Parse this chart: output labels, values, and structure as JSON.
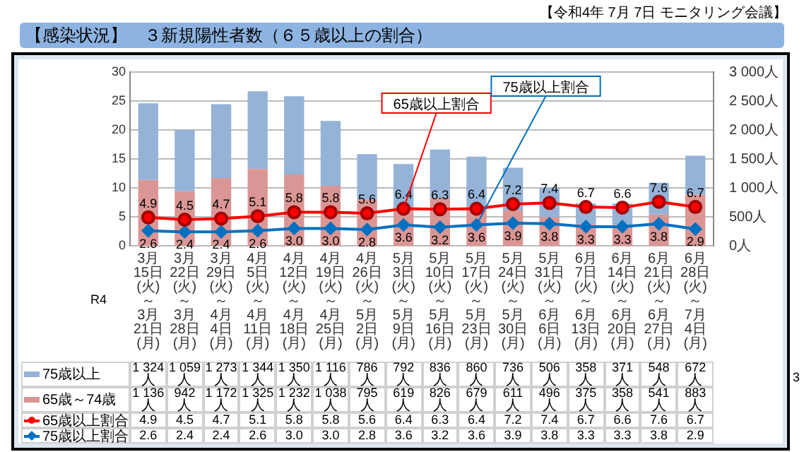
{
  "chart_data": {
    "type": "bar",
    "title": "【感染状況】　３新規陽性者数（６５歳以上の割合）",
    "categories": [
      "3月15日(火)～3月21日(月)",
      "3月22日(火)～3月28日(月)",
      "3月29日(火)～4月4日(月)",
      "4月5日(火)～4月11日(月)",
      "4月12日(火)～4月18日(月)",
      "4月19日(火)～4月25日(月)",
      "4月26日(火)～5月2日(月)",
      "5月3日(火)～5月9日(月)",
      "5月10日(火)～5月16日(月)",
      "5月17日(火)～5月23日(月)",
      "5月24日(火)～5月30日(月)",
      "5月31日(火)～6月6日(月)",
      "6月7日(火)～6月13日(月)",
      "6月14日(火)～6月20日(月)",
      "6月21日(火)～6月27日(月)",
      "6月28日(火)～7月4日(月)"
    ],
    "series": [
      {
        "name": "65歳～74歳",
        "color": "#da9694",
        "axis": "y2",
        "values": [
          1136,
          942,
          1172,
          1325,
          1232,
          1038,
          795,
          619,
          826,
          679,
          611,
          496,
          375,
          358,
          541,
          883
        ],
        "value_labels": [
          "1 136人",
          "942人",
          "1 172人",
          "1 325人",
          "1 232人",
          "1 038人",
          "795人",
          "619人",
          "826人",
          "679人",
          "611人",
          "496人",
          "375人",
          "358人",
          "541人",
          "883人"
        ]
      },
      {
        "name": "75歳以上",
        "color": "#95b3d7",
        "axis": "y2",
        "values": [
          1324,
          1059,
          1273,
          1344,
          1350,
          1116,
          786,
          792,
          836,
          860,
          736,
          506,
          358,
          371,
          548,
          672
        ],
        "value_labels": [
          "1 324人",
          "1 059人",
          "1 273人",
          "1 344人",
          "1 350人",
          "1 116人",
          "786人",
          "792人",
          "836人",
          "860人",
          "736人",
          "506人",
          "358人",
          "371人",
          "548人",
          "672人"
        ]
      },
      {
        "name": "65歳以上割合",
        "type": "line",
        "color": "#ff0000",
        "marker": "circle",
        "axis": "y",
        "values": [
          4.9,
          4.5,
          4.7,
          5.1,
          5.8,
          5.8,
          5.6,
          6.4,
          6.3,
          6.4,
          7.2,
          7.4,
          6.7,
          6.6,
          7.6,
          6.7
        ],
        "value_labels": [
          "4.9",
          "4.5",
          "4.7",
          "5.1",
          "5.8",
          "5.8",
          "5.6",
          "6.4",
          "6.3",
          "6.4",
          "7.2",
          "7.4",
          "6.7",
          "6.6",
          "7.6",
          "6.7"
        ]
      },
      {
        "name": "75歳以上割合",
        "type": "line",
        "color": "#0070c0",
        "marker": "diamond",
        "axis": "y",
        "values": [
          2.6,
          2.4,
          2.4,
          2.6,
          3.0,
          3.0,
          2.8,
          3.6,
          3.2,
          3.6,
          3.9,
          3.8,
          3.3,
          3.3,
          3.8,
          2.9
        ],
        "value_labels": [
          "2.6",
          "2.4",
          "2.4",
          "2.6",
          "3.0",
          "3.0",
          "2.8",
          "3.6",
          "3.2",
          "3.6",
          "3.9",
          "3.8",
          "3.3",
          "3.3",
          "3.8",
          "2.9"
        ]
      }
    ],
    "stacked": true,
    "ylim": [
      0,
      30
    ],
    "yticks": [
      0,
      5,
      10,
      15,
      20,
      25,
      30
    ],
    "y2lim": [
      0,
      3000
    ],
    "y2ticks": [
      {
        "value": 0,
        "label": "0人"
      },
      {
        "value": 500,
        "label": "500人"
      },
      {
        "value": 1000,
        "label": "1 000人"
      },
      {
        "value": 1500,
        "label": "1 500人"
      },
      {
        "value": 2000,
        "label": "2 000人"
      },
      {
        "value": 2500,
        "label": "2 500人"
      },
      {
        "value": 3000,
        "label": "3 000人"
      }
    ],
    "grid": "y",
    "legend": "bottom",
    "line_style": "solid",
    "annotations": [
      "【令和4年 7月 7日 モニタリング会議】",
      "R4",
      "3",
      {
        "text": "65歳以上割合",
        "x": "5月3日(火)～5月9日(月)",
        "y": 6.4
      },
      {
        "text": "75歳以上割合",
        "x": "5月17日(火)～5月23日(月)",
        "y": 3.6
      }
    ]
  }
}
